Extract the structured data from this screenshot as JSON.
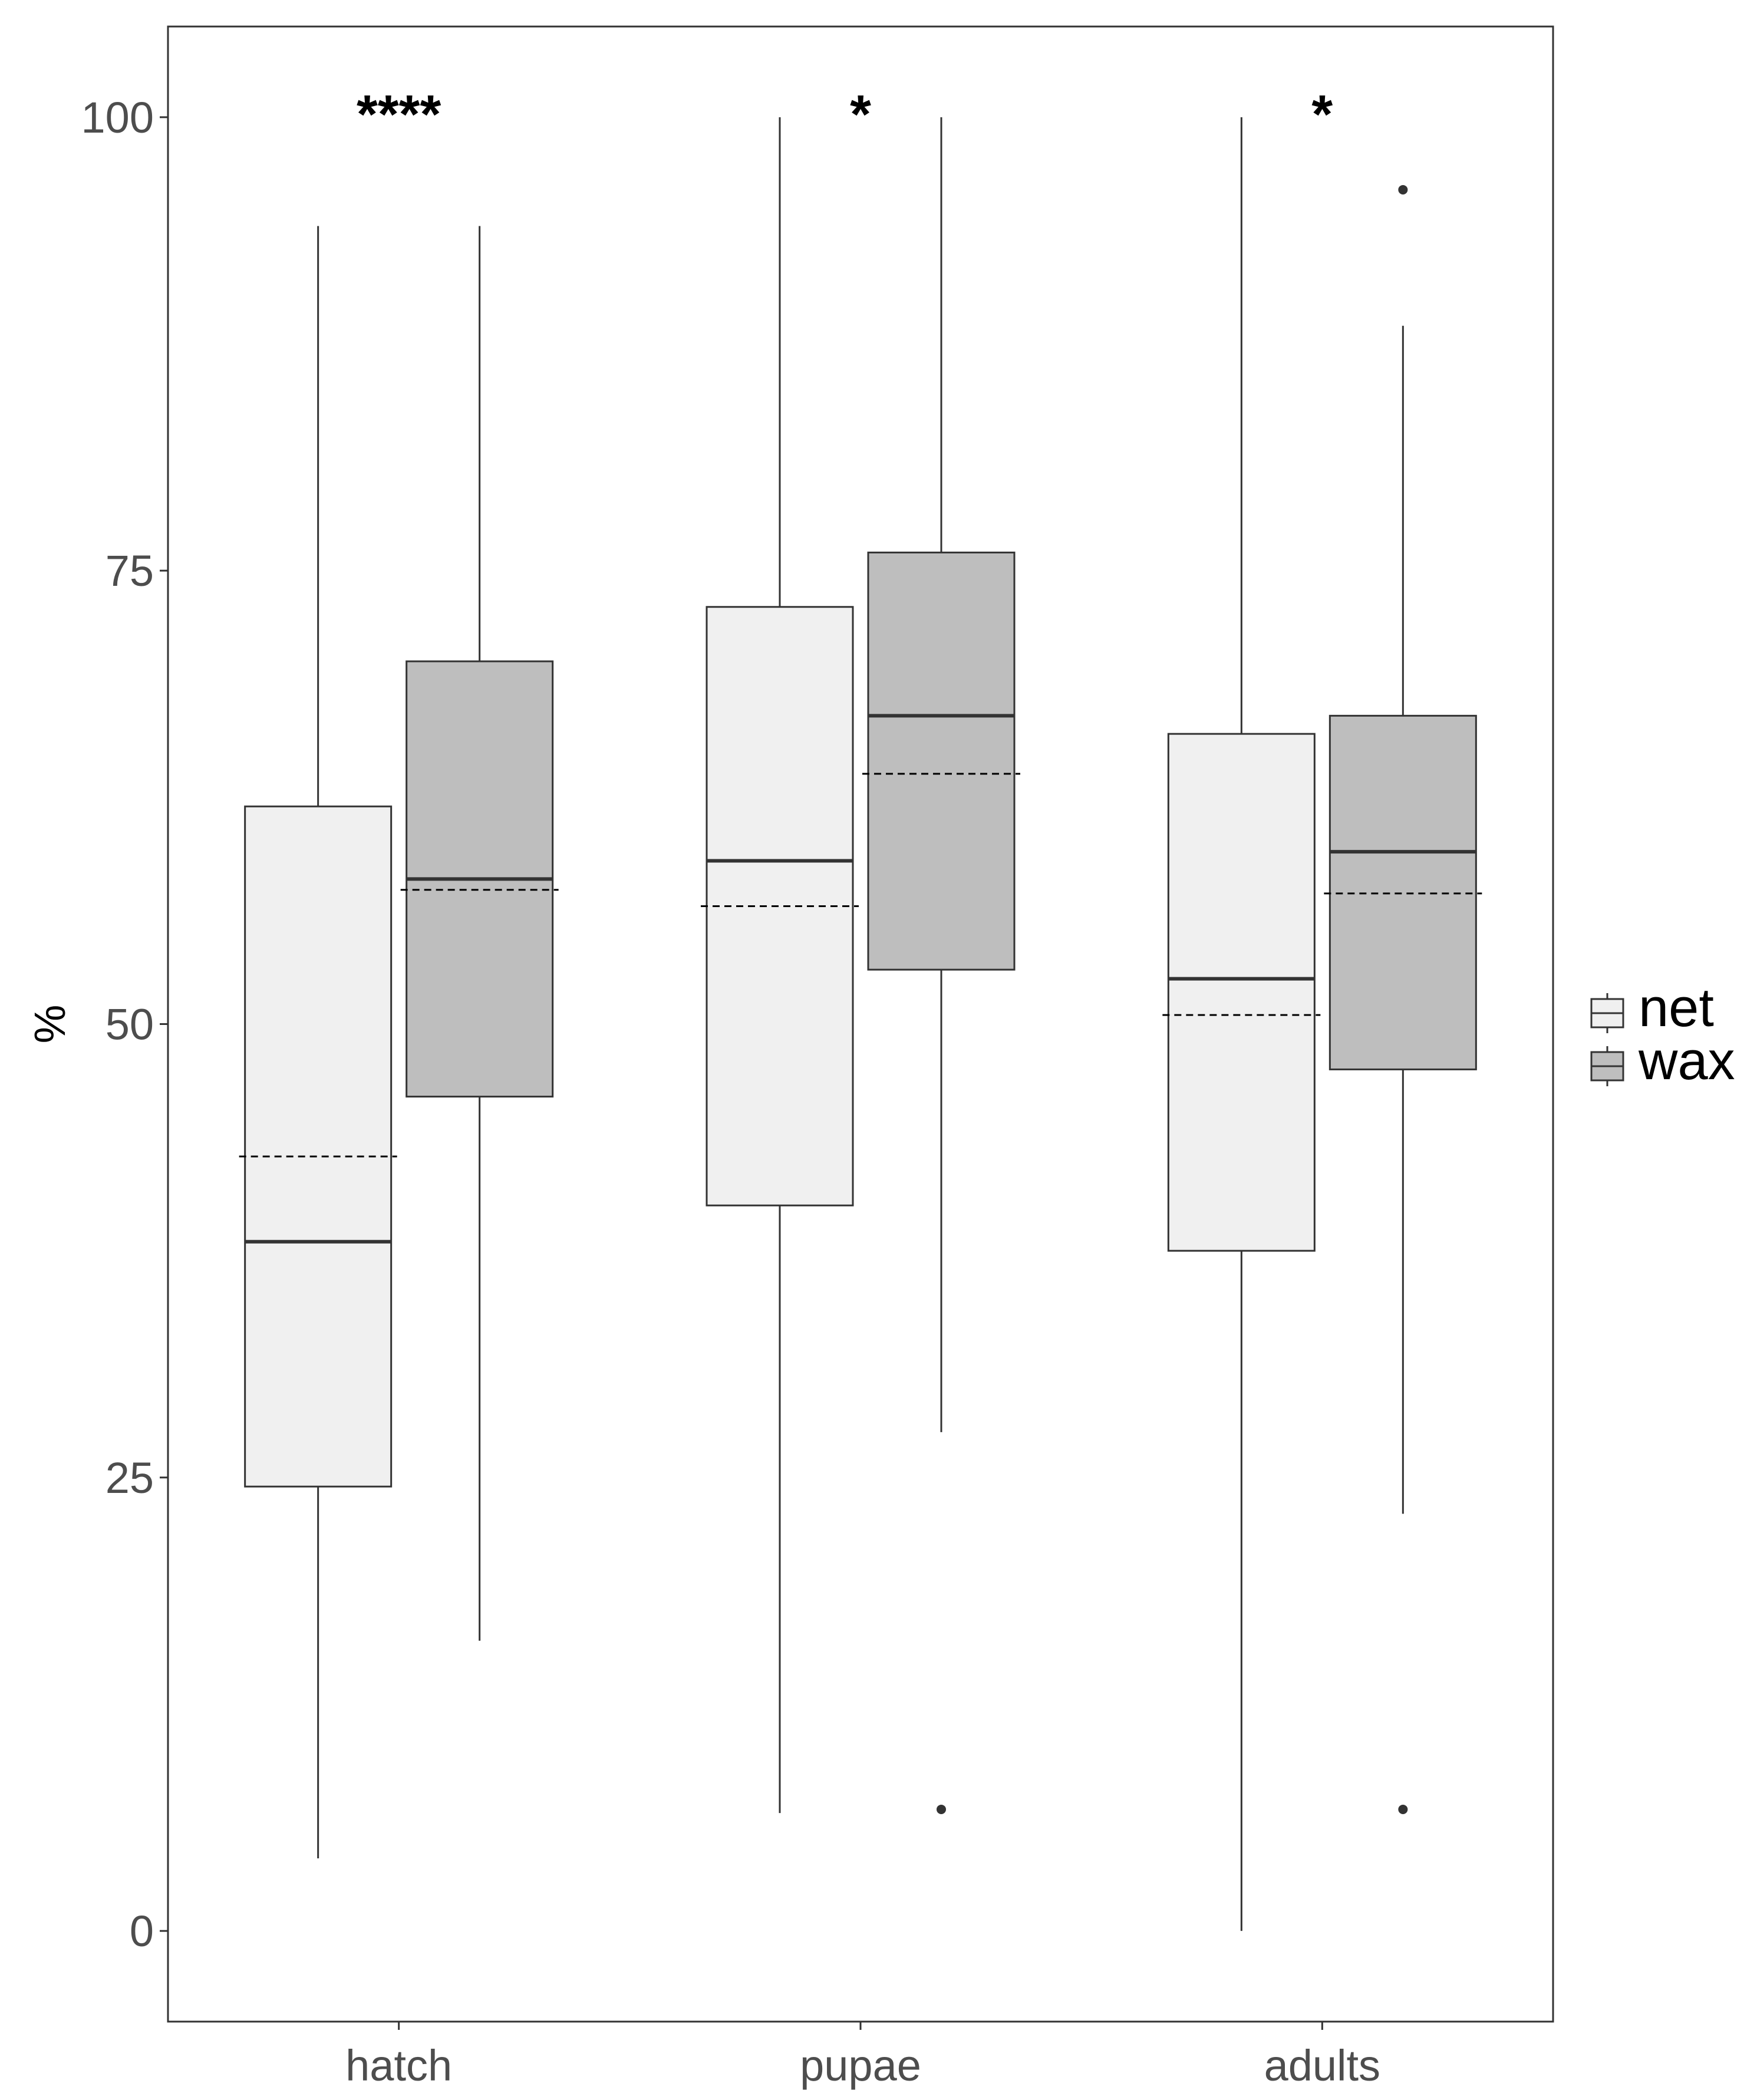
{
  "chart_data": {
    "type": "boxplot",
    "ylabel": "%",
    "xlabel": "",
    "ylim": [
      -5,
      105
    ],
    "yticks": [
      0,
      25,
      50,
      75,
      100
    ],
    "categories": [
      "hatch",
      "pupae",
      "adults"
    ],
    "grid": false,
    "legend_position": "right",
    "series": [
      {
        "name": "net",
        "color": "#f0f0f0",
        "boxes": [
          {
            "whisker_low": 4,
            "q1": 24.5,
            "median": 38,
            "q3": 62,
            "whisker_high": 94,
            "mean": 42.7,
            "outliers": []
          },
          {
            "whisker_low": 6.5,
            "q1": 40,
            "median": 59,
            "q3": 73,
            "whisker_high": 100,
            "mean": 56.5,
            "outliers": []
          },
          {
            "whisker_low": 0,
            "q1": 37.5,
            "median": 52.5,
            "q3": 66,
            "whisker_high": 100,
            "mean": 50.5,
            "outliers": []
          }
        ]
      },
      {
        "name": "wax",
        "color": "#bebebe",
        "boxes": [
          {
            "whisker_low": 16,
            "q1": 46,
            "median": 58,
            "q3": 70,
            "whisker_high": 94,
            "mean": 57.4,
            "outliers": []
          },
          {
            "whisker_low": 27.5,
            "q1": 53,
            "median": 67,
            "q3": 76,
            "whisker_high": 100,
            "mean": 63.8,
            "outliers": [
              6.7
            ]
          },
          {
            "whisker_low": 23,
            "q1": 47.5,
            "median": 59.5,
            "q3": 67,
            "whisker_high": 88.5,
            "mean": 57.2,
            "outliers": [
              96,
              6.7
            ]
          }
        ]
      }
    ],
    "annotations": [
      {
        "category": "hatch",
        "text": "****",
        "y": 100.5
      },
      {
        "category": "pupae",
        "text": "*",
        "y": 100.5
      },
      {
        "category": "adults",
        "text": "*",
        "y": 100.5
      }
    ],
    "legend": [
      {
        "name": "net",
        "color": "#f0f0f0"
      },
      {
        "name": "wax",
        "color": "#bebebe"
      }
    ]
  }
}
